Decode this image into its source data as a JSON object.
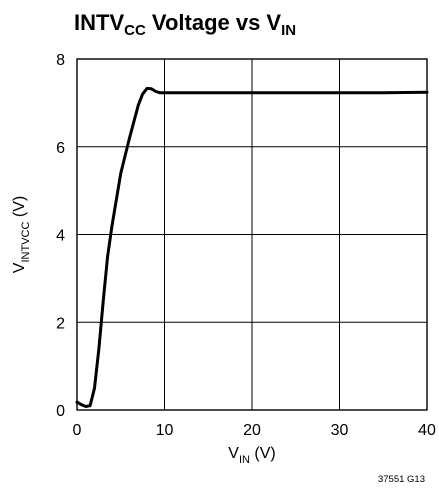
{
  "chart_data": {
    "type": "line",
    "title": {
      "parts": [
        {
          "text": "INTV",
          "sub": false
        },
        {
          "text": "CC",
          "sub": true
        },
        {
          "text": " Voltage vs V",
          "sub": false
        },
        {
          "text": "IN",
          "sub": true
        }
      ]
    },
    "xlabel": {
      "parts": [
        {
          "text": "V",
          "sub": false
        },
        {
          "text": "IN",
          "sub": true
        },
        {
          "text": " (V)",
          "sub": false
        }
      ]
    },
    "ylabel": {
      "parts": [
        {
          "text": "V",
          "sub": false
        },
        {
          "text": "INTVCC",
          "sub": true
        },
        {
          "text": " (V)",
          "sub": false
        }
      ]
    },
    "xlim": [
      0,
      40
    ],
    "ylim": [
      0,
      8
    ],
    "xticks": [
      0,
      10,
      20,
      30,
      40
    ],
    "yticks": [
      0,
      2,
      4,
      6,
      8
    ],
    "grid": true,
    "series": [
      {
        "x": [
          0,
          0.5,
          1.0,
          1.5,
          2.0,
          2.5,
          3.0,
          3.5,
          4.0,
          5.0,
          6.0,
          7.0,
          7.5,
          8.0,
          8.5,
          9.0,
          9.5,
          10.0,
          15.0,
          20.0,
          25.0,
          30.0,
          35.0,
          40.0
        ],
        "y": [
          0.18,
          0.12,
          0.08,
          0.1,
          0.5,
          1.4,
          2.5,
          3.5,
          4.2,
          5.4,
          6.2,
          6.95,
          7.2,
          7.33,
          7.32,
          7.26,
          7.23,
          7.23,
          7.23,
          7.23,
          7.23,
          7.23,
          7.23,
          7.24
        ]
      }
    ]
  },
  "figure_id": "37551 G13"
}
